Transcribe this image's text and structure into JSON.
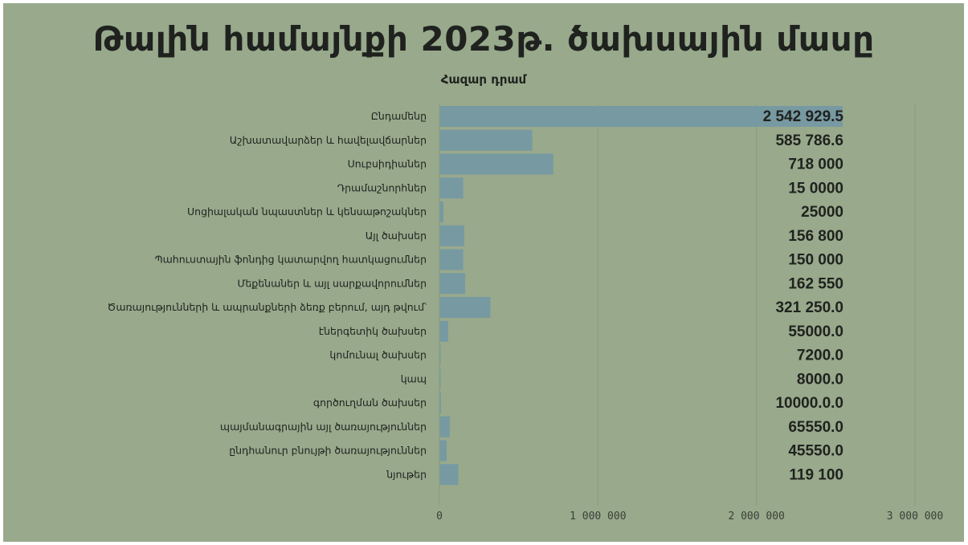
{
  "chart_data": {
    "type": "bar",
    "orientation": "horizontal",
    "title": "Թալին համայնքի 2023թ. ծախսային մասը",
    "subtitle": "Հազար դրամ",
    "categories": [
      "Ընդամենը",
      "Աշխատավարձեր և հավելավճարներ",
      "Սուբսիդիաներ",
      "Դրամաշնորհներ",
      "Սոցիալական նպաստներ և կենսաթոշակներ",
      "Այլ ծախսեր",
      "Պահուստային ֆոնդից կատարվող հատկացումներ",
      "Մեքենաներ և այլ սարքավորումներ",
      "Ծառայությունների և ապրանքների ձեռք բերում, այդ թվում՝",
      "էներգետիկ ծախսեր",
      "կոմունալ ծախսեր",
      "կապ",
      "գործուղման ծախսեր",
      "պայմանագրային այլ ծառայություններ",
      "ընդհանուր բնույթի ծառայություններ",
      "նյութեր"
    ],
    "values": [
      2542929.5,
      585786.6,
      718000,
      150000,
      25000,
      156800,
      150000,
      162550,
      321250,
      55000,
      7200,
      8000,
      10000,
      65550,
      45550,
      119100
    ],
    "data_labels": [
      "2 542 929.5",
      "585 786.6",
      "718 000",
      "15 0000",
      "25000",
      "156 800",
      "150 000",
      "162 550",
      "321 250.0",
      "55000.0",
      "7200.0",
      "8000.0",
      "10000.0.0",
      "65550.0",
      "45550.0",
      "119 100"
    ],
    "xlim": [
      0,
      3000000
    ],
    "x_ticks": [
      0,
      1000000,
      2000000,
      3000000
    ],
    "x_tick_labels": [
      "0",
      "1 000 000",
      "2 000 000",
      "3 000 000"
    ],
    "grid": "vertical",
    "colors": {
      "bar": "#7799a2",
      "background": "#98a98c",
      "grid": "#8a9b7f",
      "text": "#1f221e"
    }
  }
}
